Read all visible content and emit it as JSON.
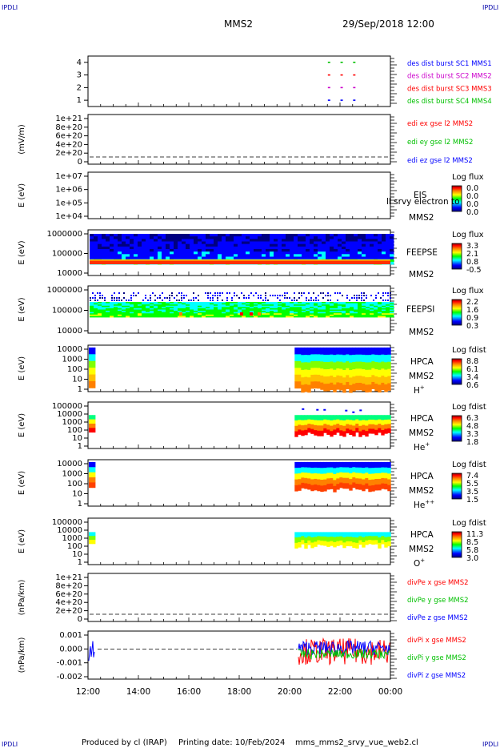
{
  "header": {
    "corner_left_top": "IPDLI",
    "corner_right_top": "IPDLI",
    "corner_left_bottom": "IPDLI",
    "corner_right_bottom": "IPDLI",
    "spacecraft": "MMS2",
    "datetime": "29/Sep/2018 12:00"
  },
  "footer": {
    "produced_by": "Produced by cl (IRAP)",
    "printing_date": "Printing date: 10/Feb/2024",
    "file": "mms_mms2_srvy_vue_web2.cl"
  },
  "colors": {
    "spectrogram_scale": [
      "#000080",
      "#0000ff",
      "#00ffff",
      "#00ff00",
      "#ffff00",
      "#ff8000",
      "#ff0000",
      "#800000"
    ],
    "line_red": "#ff0000",
    "line_green": "#00c000",
    "line_blue": "#0000ff",
    "line_magenta": "#cc00cc"
  },
  "chart_data": [
    {
      "type": "scatter",
      "panel": "burst_availability",
      "yticks": [
        "1",
        "2",
        "3",
        "4"
      ],
      "ylim": [
        0.5,
        4.5
      ],
      "xticks": [
        "12:00",
        "14:00",
        "16:00",
        "18:00",
        "20:00",
        "22:00",
        "00:00"
      ],
      "xlim_hours": [
        12,
        24
      ],
      "series": [
        {
          "name": "des dist burst SC1 MMS1",
          "color": "#0000ff",
          "y": 1,
          "x_hours": [
            21.55,
            22.05,
            22.55
          ]
        },
        {
          "name": "des dist burst SC2 MMS2",
          "color": "#cc00cc",
          "y": 2,
          "x_hours": [
            21.55,
            22.05,
            22.55
          ]
        },
        {
          "name": "des dist burst SC3 MMS3",
          "color": "#ff0000",
          "y": 3,
          "x_hours": [
            21.55,
            22.05,
            22.55
          ]
        },
        {
          "name": "des dist burst SC4 MMS4",
          "color": "#00c000",
          "y": 4,
          "x_hours": [
            21.55,
            22.05,
            22.55
          ]
        }
      ]
    },
    {
      "type": "line",
      "panel": "edi_efield",
      "ylabel": "(mV/m)",
      "yticks": [
        "0",
        "2e+20",
        "4e+20",
        "6e+20",
        "8e+20",
        "1e+21"
      ],
      "series": [
        {
          "name": "edi ex gse l2 MMS2",
          "color": "#ff0000"
        },
        {
          "name": "edi ey gse l2 MMS2",
          "color": "#00c000"
        },
        {
          "name": "edi ez gse l2 MMS2",
          "color": "#0000ff"
        }
      ]
    },
    {
      "type": "heatmap",
      "panel": "eis",
      "ylabel": "E (eV)",
      "yticks": [
        "1e+04",
        "1e+05",
        "1e+06",
        "1e+07"
      ],
      "instrument": "EIS",
      "spacecraft": "MMS2",
      "overlay_text": "ll srvy electron to",
      "colorbar_title": "Log flux",
      "colorbar_ticks": [
        "0.0",
        "0.0",
        "0.0",
        "0.0"
      ]
    },
    {
      "type": "heatmap",
      "panel": "feeps_e",
      "ylabel": "E (eV)",
      "yticks": [
        "10000",
        "100000",
        "1000000"
      ],
      "instrument": "FEEPSE",
      "spacecraft": "MMS2",
      "colorbar_title": "Log flux",
      "colorbar_ticks": [
        "3.3",
        "2.1",
        "0.8",
        "-0.5"
      ]
    },
    {
      "type": "heatmap",
      "panel": "feeps_i",
      "ylabel": "E (eV)",
      "yticks": [
        "10000",
        "100000",
        "1000000"
      ],
      "instrument": "FEEPSI",
      "spacecraft": "MMS2",
      "colorbar_title": "Log flux",
      "colorbar_ticks": [
        "2.2",
        "1.6",
        "0.9",
        "0.3"
      ]
    },
    {
      "type": "heatmap",
      "panel": "hpca_h",
      "ylabel": "E (eV)",
      "yticks": [
        "1",
        "10",
        "100",
        "1000",
        "10000"
      ],
      "instrument": "HPCA",
      "spacecraft": "MMS2",
      "species": "H",
      "species_sup": "+",
      "colorbar_title": "Log fdist",
      "colorbar_ticks": [
        "8.8",
        "6.1",
        "3.4",
        "0.6"
      ]
    },
    {
      "type": "heatmap",
      "panel": "hpca_he",
      "ylabel": "E (eV)",
      "yticks": [
        "1",
        "10",
        "100",
        "1000",
        "10000",
        "100000"
      ],
      "instrument": "HPCA",
      "spacecraft": "MMS2",
      "species": "He",
      "species_sup": "+",
      "colorbar_title": "Log fdist",
      "colorbar_ticks": [
        "6.3",
        "4.8",
        "3.3",
        "1.8"
      ]
    },
    {
      "type": "heatmap",
      "panel": "hpca_hepp",
      "ylabel": "E (eV)",
      "yticks": [
        "1",
        "10",
        "100",
        "1000",
        "10000"
      ],
      "instrument": "HPCA",
      "spacecraft": "MMS2",
      "species": "He",
      "species_sup": "++",
      "colorbar_title": "Log fdist",
      "colorbar_ticks": [
        "7.4",
        "5.5",
        "3.5",
        "1.5"
      ]
    },
    {
      "type": "heatmap",
      "panel": "hpca_o",
      "ylabel": "E (eV)",
      "yticks": [
        "1",
        "10",
        "100",
        "1000",
        "10000",
        "100000"
      ],
      "instrument": "HPCA",
      "spacecraft": "MMS2",
      "species": "O",
      "species_sup": "+",
      "colorbar_title": "Log fdist",
      "colorbar_ticks": [
        "11.3",
        "8.5",
        "5.8",
        "3.0"
      ]
    },
    {
      "type": "line",
      "panel": "divpe",
      "ylabel": "(nPa/km)",
      "yticks": [
        "0",
        "2e+20",
        "4e+20",
        "6e+20",
        "8e+20",
        "1e+21"
      ],
      "series": [
        {
          "name": "divPe x gse MMS2",
          "color": "#ff0000"
        },
        {
          "name": "divPe y gse MMS2",
          "color": "#00c000"
        },
        {
          "name": "divPe z gse MMS2",
          "color": "#0000ff"
        }
      ]
    },
    {
      "type": "line",
      "panel": "divpi",
      "ylabel": "(nPa/km)",
      "yticks": [
        "-0.002",
        "-0.001",
        "0.000",
        "0.001"
      ],
      "ylim": [
        -0.0025,
        0.0015
      ],
      "xticks": [
        "12:00",
        "14:00",
        "16:00",
        "18:00",
        "20:00",
        "22:00",
        "00:00"
      ],
      "series": [
        {
          "name": "divPi x gse MMS2",
          "color": "#ff0000"
        },
        {
          "name": "divPi y gse MMS2",
          "color": "#00c000"
        },
        {
          "name": "divPi z gse MMS2",
          "color": "#0000ff"
        }
      ]
    }
  ]
}
